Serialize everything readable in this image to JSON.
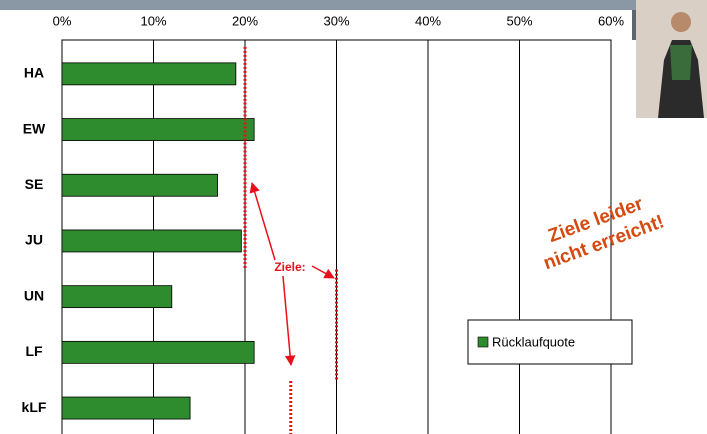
{
  "chart_data": {
    "type": "bar",
    "orientation": "horizontal",
    "categories": [
      "HA",
      "EW",
      "SE",
      "JU",
      "UN",
      "LF",
      "kLF"
    ],
    "series": [
      {
        "name": "Rücklaufquote",
        "color": "#2e8b2e",
        "values": [
          19,
          21,
          17,
          19.6,
          12,
          21,
          14
        ]
      }
    ],
    "targets": {
      "label": "Ziele:",
      "color": "#e8101a",
      "values": [
        20,
        20,
        20,
        20,
        30,
        30,
        25
      ]
    },
    "xlim": [
      0,
      60
    ],
    "xticks": [
      {
        "value": 0,
        "label": "0%"
      },
      {
        "value": 10,
        "label": "10%"
      },
      {
        "value": 20,
        "label": "20%"
      },
      {
        "value": 30,
        "label": "30%"
      },
      {
        "value": 40,
        "label": "40%"
      },
      {
        "value": 50,
        "label": "50%"
      },
      {
        "value": 60,
        "label": "60%"
      }
    ],
    "grid": true,
    "legend": "right",
    "annotation": [
      "Ziele leider",
      "nicht erreicht!"
    ]
  }
}
